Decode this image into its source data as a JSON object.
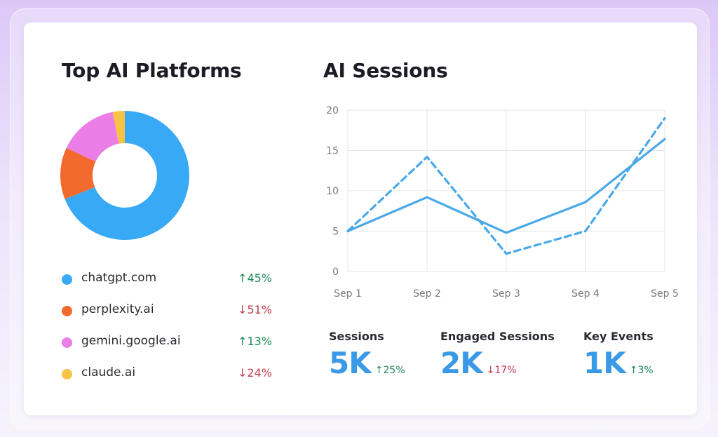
{
  "colors": {
    "chatgpt": "#38a9f5",
    "perplexity": "#f26a2e",
    "gemini": "#ea7ee6",
    "claude": "#f7c344",
    "line": "#48a8e8",
    "up": "#1f8a58",
    "down": "#c23a50"
  },
  "left_panel": {
    "title": "Top AI Platforms",
    "legend": [
      {
        "label": "chatgpt.com",
        "change": "↑45%",
        "direction": "up",
        "color": "#38a9f5"
      },
      {
        "label": "perplexity.ai",
        "change": "↓51%",
        "direction": "down",
        "color": "#f26a2e"
      },
      {
        "label": "gemini.google.ai",
        "change": "↑13%",
        "direction": "up",
        "color": "#ea7ee6"
      },
      {
        "label": "claude.ai",
        "change": "↓24%",
        "direction": "down",
        "color": "#f7c344"
      }
    ]
  },
  "right_panel": {
    "title": "AI Sessions",
    "stats": [
      {
        "label": "Sessions",
        "value": "5K",
        "change": "↑25%",
        "direction": "up"
      },
      {
        "label": "Engaged Sessions",
        "value": "2K",
        "change": "↓17%",
        "direction": "down"
      },
      {
        "label": "Key Events",
        "value": "1K",
        "change": "↑3%",
        "direction": "up"
      }
    ]
  },
  "chart_data": [
    {
      "type": "pie",
      "title": "Top AI Platforms",
      "donut": true,
      "categories": [
        "chatgpt.com",
        "perplexity.ai",
        "gemini.google.ai",
        "claude.ai"
      ],
      "values": [
        69,
        13,
        15,
        3
      ]
    },
    {
      "type": "line",
      "title": "AI Sessions",
      "categories": [
        "Sep 1",
        "Sep 2",
        "Sep 3",
        "Sep 4",
        "Sep 5"
      ],
      "yticks": [
        0,
        5,
        10,
        15,
        20
      ],
      "ylim": [
        0,
        20
      ],
      "grid": true,
      "series": [
        {
          "style": "solid",
          "values": [
            5,
            9.2,
            4.8,
            8.6,
            16.4
          ]
        },
        {
          "style": "dashed",
          "values": [
            5,
            14.2,
            2.2,
            5,
            19
          ]
        }
      ]
    }
  ]
}
